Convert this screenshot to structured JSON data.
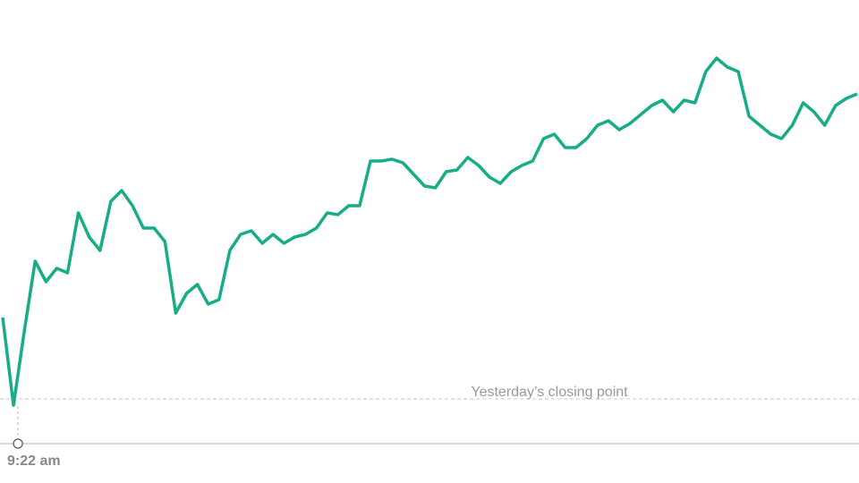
{
  "chart_data": {
    "type": "line",
    "series": [
      {
        "color": "#17ad87",
        "values": [
          91,
          -7,
          76,
          154,
          131,
          146,
          141,
          208,
          181,
          166,
          221,
          233,
          216,
          191,
          191,
          176,
          96,
          118,
          128,
          106,
          111,
          166,
          184,
          188,
          174,
          184,
          174,
          181,
          184,
          191,
          208,
          206,
          216,
          216,
          266,
          266,
          268,
          264,
          251,
          238,
          236,
          254,
          256,
          270,
          261,
          248,
          241,
          254,
          261,
          266,
          291,
          296,
          281,
          281,
          291,
          306,
          311,
          301,
          308,
          318,
          328,
          334,
          321,
          334,
          331,
          366,
          381,
          371,
          366,
          316,
          306,
          296,
          291,
          306,
          331,
          321,
          306,
          328,
          336,
          341
        ]
      }
    ],
    "xlim": [
      0,
      79
    ],
    "xticks": [
      {
        "value": 1,
        "label": "9:22 am"
      }
    ],
    "ylim": [
      -50,
      446
    ],
    "reference": {
      "value": 0,
      "label": "Yesterday’s closing point"
    }
  }
}
